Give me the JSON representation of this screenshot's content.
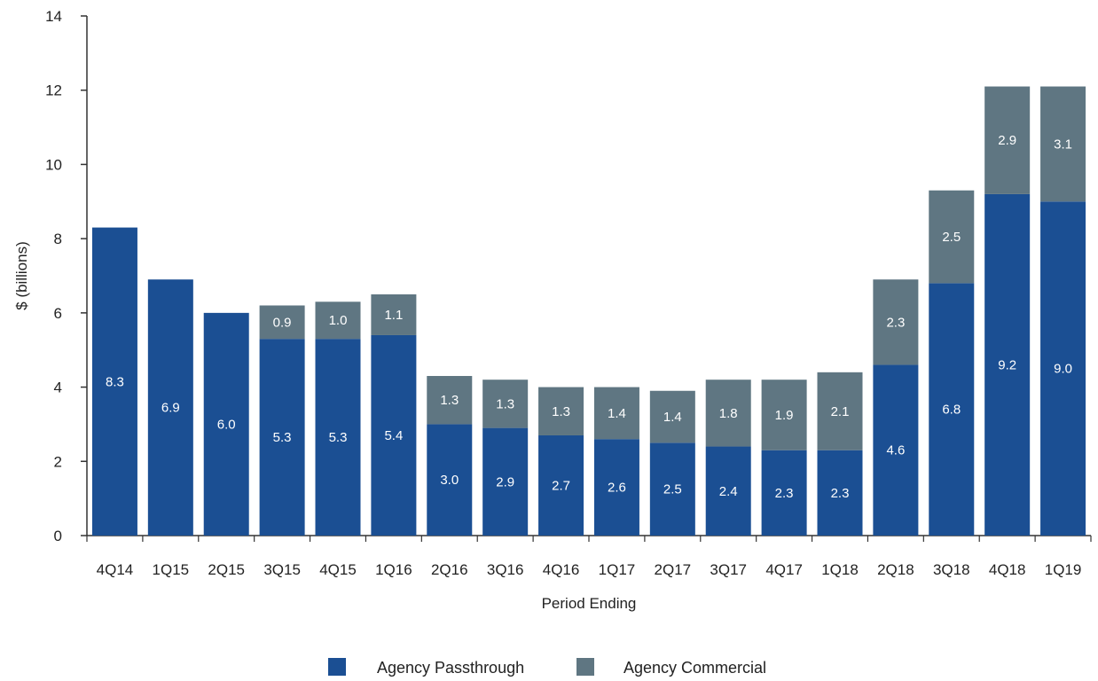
{
  "chart_data": {
    "type": "bar",
    "stacked": true,
    "title": "",
    "xlabel": "Period Ending",
    "ylabel": "$ (billions)",
    "ylim": [
      0,
      14
    ],
    "yticks": [
      0,
      2,
      4,
      6,
      8,
      10,
      12,
      14
    ],
    "grid": false,
    "legend_position": "bottom-center",
    "categories": [
      "4Q14",
      "1Q15",
      "2Q15",
      "3Q15",
      "4Q15",
      "1Q16",
      "2Q16",
      "3Q16",
      "4Q16",
      "1Q17",
      "2Q17",
      "3Q17",
      "4Q17",
      "1Q18",
      "2Q18",
      "3Q18",
      "4Q18",
      "1Q19"
    ],
    "series": [
      {
        "name": "Agency Passthrough",
        "color": "#1b4f93",
        "values": [
          8.3,
          6.9,
          6.0,
          5.3,
          5.3,
          5.4,
          3.0,
          2.9,
          2.7,
          2.6,
          2.5,
          2.4,
          2.3,
          2.3,
          4.6,
          6.8,
          9.2,
          9.0
        ],
        "labels": [
          "8.3",
          "6.9",
          "6.0",
          "5.3",
          "5.3",
          "5.4",
          "3.0",
          "2.9",
          "2.7",
          "2.6",
          "2.5",
          "2.4",
          "2.3",
          "2.3",
          "4.6",
          "6.8",
          "9.2",
          "9.0"
        ]
      },
      {
        "name": "Agency Commercial",
        "color": "#5f7682",
        "values": [
          0,
          0,
          0,
          0.9,
          1.0,
          1.1,
          1.3,
          1.3,
          1.3,
          1.4,
          1.4,
          1.8,
          1.9,
          2.1,
          2.3,
          2.5,
          2.9,
          3.1
        ],
        "labels": [
          "",
          "",
          "",
          "0.9",
          "1.0",
          "1.1",
          "1.3",
          "1.3",
          "1.3",
          "1.4",
          "1.4",
          "1.8",
          "1.9",
          "2.1",
          "2.3",
          "2.5",
          "2.9",
          "3.1"
        ]
      }
    ]
  }
}
